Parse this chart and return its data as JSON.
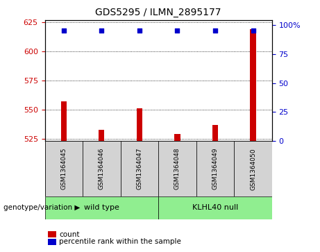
{
  "title": "GDS5295 / ILMN_2895177",
  "samples": [
    "GSM1364045",
    "GSM1364046",
    "GSM1364047",
    "GSM1364048",
    "GSM1364049",
    "GSM1364050"
  ],
  "counts": [
    557,
    533,
    551,
    529,
    537,
    619
  ],
  "percentile_ranks": [
    95,
    95,
    95,
    95,
    95,
    95
  ],
  "ylim_left": [
    523,
    627
  ],
  "ylim_right": [
    0,
    104
  ],
  "yticks_left": [
    525,
    550,
    575,
    600,
    625
  ],
  "yticks_right": [
    0,
    25,
    50,
    75,
    100
  ],
  "bar_color": "#cc0000",
  "dot_color": "#0000cc",
  "grid_color": "#000000",
  "tick_color_left": "#cc0000",
  "tick_color_right": "#0000cc",
  "groups": [
    {
      "label": "wild type",
      "samples": [
        0,
        1,
        2
      ],
      "color": "#90ee90"
    },
    {
      "label": "KLHL40 null",
      "samples": [
        3,
        4,
        5
      ],
      "color": "#90ee90"
    }
  ],
  "group_label_prefix": "genotype/variation",
  "legend_items": [
    {
      "label": "count",
      "color": "#cc0000"
    },
    {
      "label": "percentile rank within the sample",
      "color": "#0000cc"
    }
  ],
  "sample_box_color": "#d3d3d3",
  "bar_width": 0.15
}
